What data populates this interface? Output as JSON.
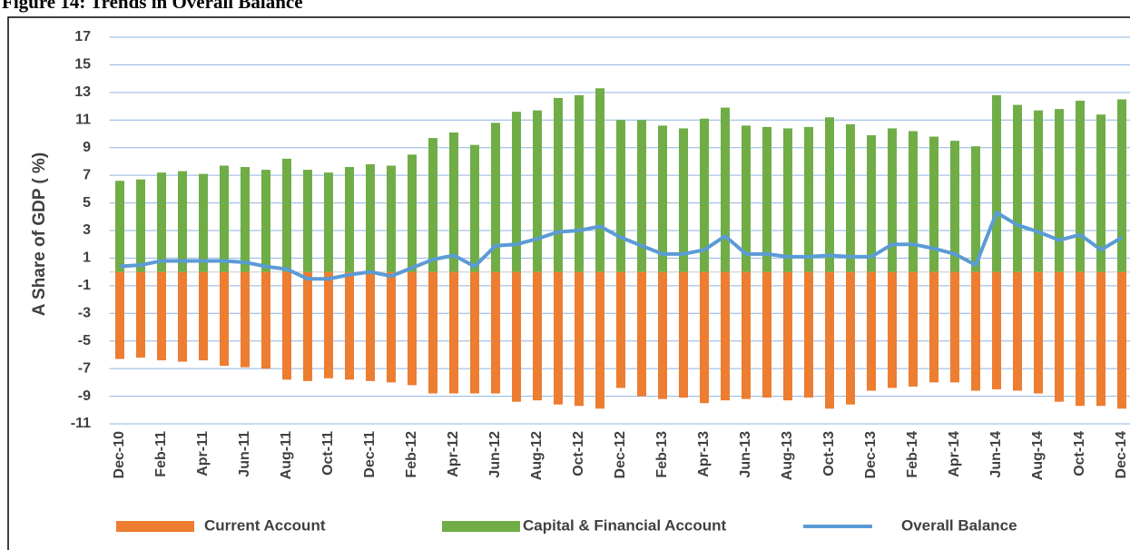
{
  "chart_data": {
    "type": "bar-line",
    "title": "Figure 14: Trends in Overall Balance",
    "y_label": "A Share of GDP ( %)",
    "categories": [
      "Dec-10",
      null,
      "Feb-11",
      null,
      "Apr-11",
      null,
      "Jun-11",
      null,
      "Aug-11",
      null,
      "Oct-11",
      null,
      "Dec-11",
      null,
      "Feb-12",
      null,
      "Apr-12",
      null,
      "Jun-12",
      null,
      "Aug-12",
      null,
      "Oct-12",
      null,
      "Dec-12",
      null,
      "Feb-13",
      null,
      "Apr-13",
      null,
      "Jun-13",
      null,
      "Aug-13",
      null,
      "Oct-13",
      null,
      "Dec-13",
      null,
      "Feb-14",
      null,
      "Apr-14",
      null,
      "Jun-14",
      null,
      "Aug-14",
      null,
      "Oct-14",
      null,
      "Dec-14"
    ],
    "series": [
      {
        "name": "Current Account",
        "kind": "bar",
        "color": "#ed7d31",
        "values": [
          -6.3,
          -6.2,
          -6.4,
          -6.5,
          -6.4,
          -6.8,
          -6.9,
          -7.0,
          -7.8,
          -7.9,
          -7.7,
          -7.8,
          -7.9,
          -8.0,
          -8.2,
          -8.8,
          -8.8,
          -8.8,
          -8.8,
          -9.4,
          -9.3,
          -9.6,
          -9.7,
          -9.9,
          -8.4,
          -9.0,
          -9.2,
          -9.1,
          -9.5,
          -9.3,
          -9.2,
          -9.1,
          -9.3,
          -9.1,
          -9.9,
          -9.6,
          -8.6,
          -8.4,
          -8.3,
          -8.0,
          -8.0,
          -8.6,
          -8.5,
          -8.6,
          -8.8,
          -9.4,
          -9.7,
          -9.7,
          -9.9
        ]
      },
      {
        "name": "Capital & Financial Account",
        "kind": "bar",
        "color": "#70ad47",
        "values": [
          6.6,
          6.7,
          7.2,
          7.3,
          7.1,
          7.7,
          7.6,
          7.4,
          8.2,
          7.4,
          7.2,
          7.6,
          7.8,
          7.7,
          8.5,
          9.7,
          10.1,
          9.2,
          10.8,
          11.6,
          11.7,
          12.6,
          12.8,
          13.3,
          11.0,
          11.0,
          10.6,
          10.4,
          11.1,
          11.9,
          10.6,
          10.5,
          10.4,
          10.5,
          11.2,
          10.7,
          9.9,
          10.4,
          10.2,
          9.8,
          9.5,
          9.1,
          12.8,
          12.1,
          11.7,
          11.8,
          12.4,
          11.4,
          12.5
        ]
      },
      {
        "name": "Overall Balance",
        "kind": "line",
        "color": "#5b9bd5",
        "values": [
          0.4,
          0.5,
          0.8,
          0.8,
          0.8,
          0.8,
          0.7,
          0.4,
          0.2,
          -0.5,
          -0.5,
          -0.2,
          0.0,
          -0.3,
          0.3,
          0.9,
          1.2,
          0.4,
          1.9,
          2.0,
          2.4,
          2.9,
          3.0,
          3.3,
          2.5,
          1.9,
          1.3,
          1.3,
          1.6,
          2.6,
          1.3,
          1.3,
          1.1,
          1.1,
          1.2,
          1.1,
          1.1,
          2.0,
          2.0,
          1.7,
          1.3,
          0.5,
          4.3,
          3.4,
          2.9,
          2.3,
          2.7,
          1.6,
          2.5
        ]
      }
    ],
    "ylim": [
      -11,
      17
    ],
    "yticks": [
      -11,
      -9,
      -7,
      -5,
      -3,
      -1,
      1,
      3,
      5,
      7,
      9,
      11,
      13,
      15,
      17
    ],
    "grid": true
  }
}
